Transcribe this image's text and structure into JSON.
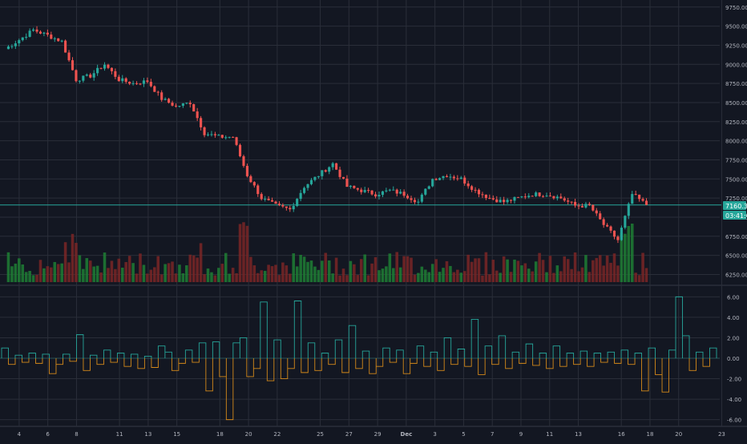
{
  "colors": {
    "background": "#131722",
    "grid": "#2a2e39",
    "axis_text": "#b2b5be",
    "up": "#26a69a",
    "down": "#ef5350",
    "vol_up": "#1e7e34",
    "vol_down": "#7a2626",
    "osc_pos": "#26a69a",
    "osc_neg": "#d4891a",
    "price_line": "#26a69a"
  },
  "chart_data": [
    {
      "type": "candlestick",
      "panel": "price",
      "y_ticks": [
        "9750.00",
        "9500.00",
        "9250.00",
        "9000.00",
        "8750.00",
        "8500.00",
        "8250.00",
        "8000.00",
        "7750.00",
        "7500.00",
        "7250.00",
        "7000.00",
        "6750.00",
        "6500.00",
        "6250.00"
      ],
      "ylim": [
        6150,
        9800
      ],
      "x_tick_labels": [
        {
          "label": "4",
          "day": 4
        },
        {
          "label": "6",
          "day": 6
        },
        {
          "label": "8",
          "day": 8
        },
        {
          "label": "11",
          "day": 11
        },
        {
          "label": "13",
          "day": 13
        },
        {
          "label": "15",
          "day": 15
        },
        {
          "label": "18",
          "day": 18
        },
        {
          "label": "20",
          "day": 20
        },
        {
          "label": "22",
          "day": 22
        },
        {
          "label": "25",
          "day": 25
        },
        {
          "label": "27",
          "day": 27
        },
        {
          "label": "29",
          "day": 29
        },
        {
          "label": "Dec",
          "day": 31
        },
        {
          "label": "3",
          "day": 33
        },
        {
          "label": "5",
          "day": 35
        },
        {
          "label": "7",
          "day": 37
        },
        {
          "label": "9",
          "day": 39
        },
        {
          "label": "11",
          "day": 41
        },
        {
          "label": "13",
          "day": 43
        },
        {
          "label": "16",
          "day": 46
        },
        {
          "label": "18",
          "day": 48
        },
        {
          "label": "20",
          "day": 50
        },
        {
          "label": "23",
          "day": 53
        }
      ],
      "current_price_label": "7160.34",
      "countdown_label": "03:41:06",
      "current_price": 7160,
      "daily_closes": [
        9200,
        9320,
        9450,
        9380,
        9300,
        8800,
        8850,
        9000,
        8800,
        8750,
        8780,
        8550,
        8450,
        8500,
        8100,
        8050,
        8050,
        7550,
        7250,
        7150,
        7100,
        7400,
        7550,
        7700,
        7400,
        7350,
        7300,
        7350,
        7300,
        7200,
        7500,
        7550,
        7500,
        7350,
        7250,
        7200,
        7250,
        7300,
        7300,
        7250,
        7150,
        7150,
        6900,
        6700,
        7300,
        7160
      ],
      "volume_ylim": [
        0,
        5
      ],
      "volume_note": "volume histogram in lower part of price panel"
    },
    {
      "type": "histogram",
      "panel": "oscillator",
      "y_ticks": [
        "6.00",
        "4.00",
        "2.00",
        "0.00",
        "-2.00",
        "-4.00",
        "-6.00"
      ],
      "ylim": [
        -6.5,
        6.5
      ],
      "values": [
        1.0,
        -0.6,
        0.3,
        -0.4,
        0.5,
        -0.5,
        0.4,
        -1.5,
        -0.6,
        0.4,
        -0.3,
        2.3,
        -1.2,
        0.3,
        -0.6,
        0.8,
        -0.4,
        0.5,
        -0.8,
        0.4,
        -1.0,
        0.2,
        -0.9,
        1.2,
        0.6,
        -1.2,
        -0.5,
        0.8,
        -0.4,
        1.5,
        -3.2,
        1.6,
        -1.8,
        -6.0,
        1.5,
        2.0,
        -1.8,
        -1.0,
        5.5,
        -2.2,
        1.8,
        -2.0,
        -1.0,
        5.6,
        -1.4,
        1.5,
        -1.2,
        0.5,
        -0.6,
        1.8,
        -1.4,
        3.2,
        -1.0,
        0.7,
        -1.5,
        -0.8,
        1.0,
        -0.4,
        0.8,
        -1.5,
        -0.5,
        1.2,
        -0.8,
        0.6,
        -1.2,
        2.0,
        -0.6,
        0.9,
        -0.8,
        3.8,
        -1.6,
        1.2,
        -0.6,
        2.2,
        -1.0,
        0.6,
        -0.5,
        1.4,
        -0.7,
        0.5,
        -1.0,
        1.2,
        -0.8,
        0.5,
        -0.6,
        0.7,
        -0.8,
        0.5,
        -0.4,
        0.6,
        -0.5,
        0.8,
        -0.6,
        0.5,
        -3.2,
        1.0,
        -1.6,
        -3.3,
        0.8,
        6.0,
        2.2,
        -1.2,
        0.6,
        -0.8,
        1.0
      ]
    }
  ]
}
